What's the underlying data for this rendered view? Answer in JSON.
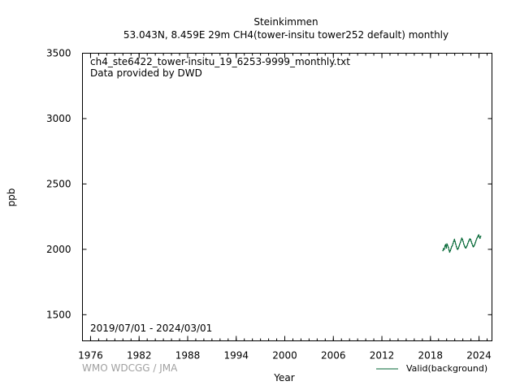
{
  "header": {
    "station": "Steinkimmen",
    "subtitle": "53.043N, 8.459E 29m    CH4(tower-insitu tower252 default) monthly"
  },
  "plot_info": {
    "filename": "ch4_ste6422_tower-insitu_19_6253-9999_monthly.txt",
    "provider": "Data provided by DWD",
    "period": "2019/07/01 - 2024/03/01"
  },
  "credit": "WMO WDCGG / JMA",
  "chart_data": {
    "type": "line",
    "title": "",
    "xlabel": "Year",
    "ylabel": "ppb",
    "xlim": [
      1975,
      2025.6
    ],
    "ylim": [
      1300,
      3500
    ],
    "xticks": [
      1976,
      1982,
      1988,
      1994,
      2000,
      2006,
      2012,
      2018,
      2024
    ],
    "yticks": [
      1500,
      2000,
      2500,
      3000,
      3500
    ],
    "grid": false,
    "legend_position": "bottom-right",
    "line_color": "#006633",
    "series": [
      {
        "name": "Valid(background)",
        "x": [
          2019.54,
          2019.62,
          2019.71,
          2019.79,
          2019.87,
          2019.96,
          2020.04,
          2020.12,
          2020.21,
          2020.29,
          2020.37,
          2020.46,
          2020.54,
          2020.62,
          2020.71,
          2020.79,
          2020.87,
          2020.96,
          2021.04,
          2021.12,
          2021.21,
          2021.29,
          2021.37,
          2021.46,
          2021.54,
          2021.62,
          2021.71,
          2021.79,
          2021.87,
          2021.96,
          2022.04,
          2022.12,
          2022.21,
          2022.29,
          2022.37,
          2022.46,
          2022.54,
          2022.62,
          2022.71,
          2022.79,
          2022.87,
          2022.96,
          2023.04,
          2023.12,
          2023.21,
          2023.29,
          2023.37,
          2023.46,
          2023.54,
          2023.62,
          2023.71,
          2023.79,
          2023.87,
          2023.96,
          2024.04,
          2024.12,
          2024.21
        ],
        "values": [
          1990,
          2005,
          2000,
          2025,
          2035,
          2010,
          2040,
          2030,
          2015,
          1995,
          1980,
          1990,
          2005,
          2020,
          2030,
          2045,
          2060,
          2075,
          2060,
          2040,
          2020,
          2005,
          2000,
          2010,
          2025,
          2040,
          2055,
          2070,
          2085,
          2075,
          2060,
          2040,
          2025,
          2015,
          2010,
          2020,
          2030,
          2045,
          2060,
          2070,
          2080,
          2075,
          2060,
          2045,
          2030,
          2020,
          2025,
          2035,
          2050,
          2065,
          2080,
          2090,
          2100,
          2110,
          2095,
          2085,
          2100
        ]
      }
    ]
  }
}
